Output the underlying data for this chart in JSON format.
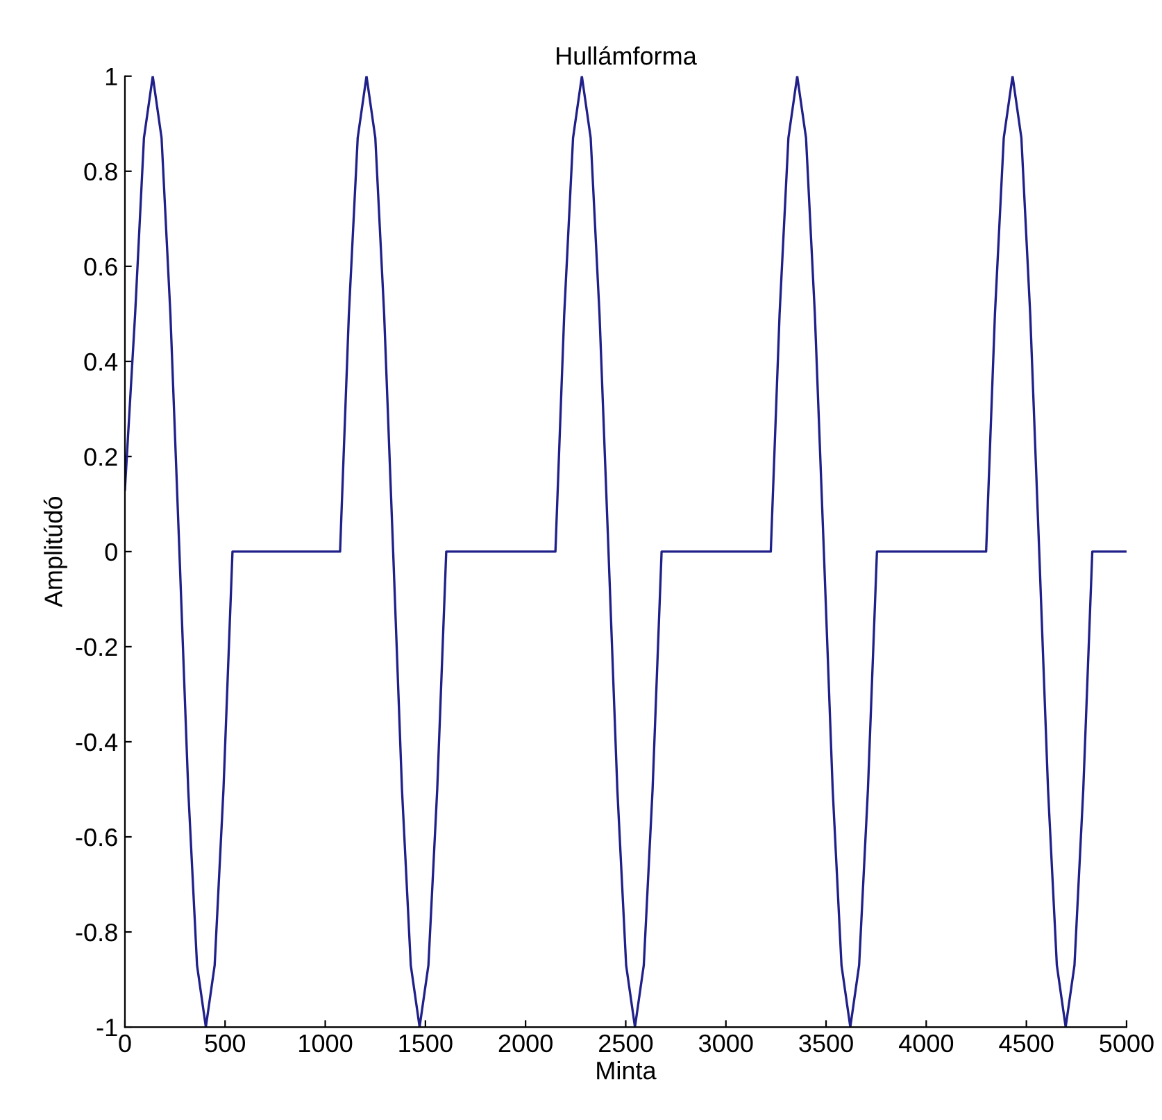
{
  "chart_data": {
    "type": "line",
    "title": "Hullámforma",
    "xlabel": "Minta",
    "ylabel": "Amplitúdó",
    "x": [
      0,
      51,
      95,
      139,
      183,
      227,
      272,
      316,
      360,
      404,
      448,
      492,
      537,
      1074,
      1118,
      1162,
      1206,
      1250,
      1294,
      1339,
      1383,
      1427,
      1471,
      1515,
      1559,
      1604,
      2149,
      2193,
      2237,
      2281,
      2325,
      2369,
      2414,
      2458,
      2502,
      2546,
      2590,
      2634,
      2679,
      3224,
      3268,
      3312,
      3356,
      3400,
      3444,
      3489,
      3533,
      3577,
      3621,
      3665,
      3709,
      3754,
      4299,
      4343,
      4387,
      4431,
      4475,
      4519,
      4564,
      4608,
      4652,
      4696,
      4740,
      4784,
      4829,
      5000
    ],
    "series": [
      {
        "color": "#20208a",
        "values": [
          0.13,
          0.5,
          0.87,
          1,
          0.87,
          0.5,
          0,
          -0.5,
          -0.87,
          -1,
          -0.87,
          -0.5,
          0,
          0,
          0.5,
          0.87,
          1,
          0.87,
          0.5,
          0,
          -0.5,
          -0.87,
          -1,
          -0.87,
          -0.5,
          0,
          0,
          0.5,
          0.87,
          1,
          0.87,
          0.5,
          0,
          -0.5,
          -0.87,
          -1,
          -0.87,
          -0.5,
          0,
          0,
          0.5,
          0.87,
          1,
          0.87,
          0.5,
          0,
          -0.5,
          -0.87,
          -1,
          -0.87,
          -0.5,
          0,
          0,
          0.5,
          0.87,
          1,
          0.87,
          0.5,
          0,
          -0.5,
          -0.87,
          -1,
          -0.87,
          -0.5,
          0,
          0
        ]
      }
    ],
    "xlim": [
      0,
      5000
    ],
    "ylim": [
      -1,
      1
    ],
    "xticks": [
      0,
      500,
      1000,
      1500,
      2000,
      2500,
      3000,
      3500,
      4000,
      4500,
      5000
    ],
    "yticks": [
      -1,
      -0.8,
      -0.6,
      -0.4,
      -0.2,
      0,
      0.2,
      0.4,
      0.6,
      0.8,
      1
    ],
    "grid": false,
    "legend": false,
    "marker": "none",
    "line_style": "solid"
  }
}
